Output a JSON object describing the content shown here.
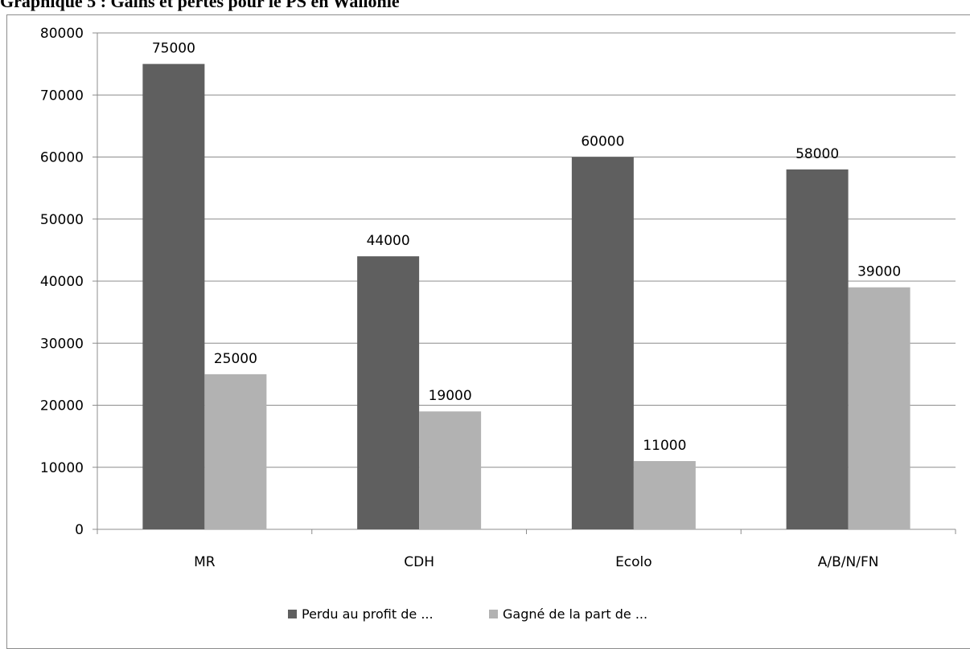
{
  "page": {
    "title": "Graphique 5 : Gains et pertes pour le PS en Wallonie"
  },
  "chart_data": {
    "type": "bar",
    "title": "Graphique 5 : Gains et pertes pour le PS en Wallonie",
    "categories": [
      "MR",
      "CDH",
      "Ecolo",
      "A/B/N/FN"
    ],
    "series": [
      {
        "name": "Perdu au profit de ...",
        "values": [
          75000,
          44000,
          60000,
          58000
        ],
        "color": "#5f5f5f"
      },
      {
        "name": "Gagné de la part de ...",
        "values": [
          25000,
          19000,
          11000,
          39000
        ],
        "color": "#b2b2b2"
      }
    ],
    "ylim": [
      0,
      80000
    ],
    "yticks": [
      0,
      10000,
      20000,
      30000,
      40000,
      50000,
      60000,
      70000,
      80000
    ],
    "xlabel": "",
    "ylabel": "",
    "grid": true,
    "legend_position": "bottom",
    "data_labels": true
  }
}
